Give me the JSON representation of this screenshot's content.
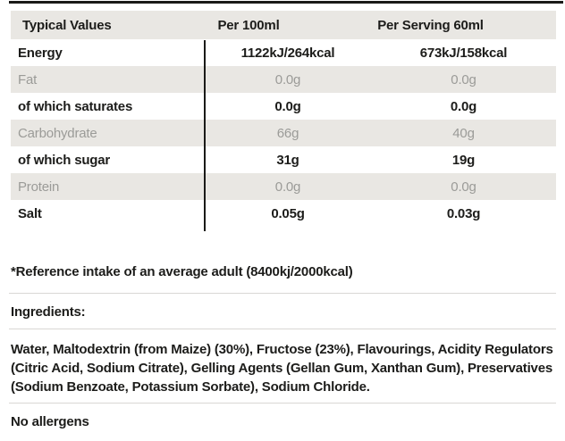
{
  "table": {
    "columns": [
      "Typical Values",
      "Per 100ml",
      "Per Serving 60ml"
    ],
    "rows": [
      {
        "label": "Energy",
        "per100": "1122kJ/264kcal",
        "serving": "673kJ/158kcal"
      },
      {
        "label": "Fat",
        "per100": "0.0g",
        "serving": "0.0g"
      },
      {
        "label": "of which saturates",
        "per100": "0.0g",
        "serving": "0.0g"
      },
      {
        "label": "Carbohydrate",
        "per100": "66g",
        "serving": "40g"
      },
      {
        "label": "of which sugar",
        "per100": "31g",
        "serving": "19g"
      },
      {
        "label": "Protein",
        "per100": "0.0g",
        "serving": "0.0g"
      },
      {
        "label": "Salt",
        "per100": "0.05g",
        "serving": "0.03g"
      }
    ]
  },
  "notes": {
    "reference": "*Reference intake of an average adult (8400kj/2000kcal)",
    "ingredients_label": "Ingredients:",
    "ingredients": "Water, Maltodextrin (from Maize) (30%), Fructose (23%), Flavourings, Acidity Regulators (Citric Acid, Sodium Citrate), Gelling Agents (Gellan Gum, Xanthan Gum), Preservatives (Sodium Benzoate, Potassium Sorbate), Sodium Chloride.",
    "allergens": "No allergens"
  },
  "colors": {
    "text_dark": "#1c1c1a",
    "text_muted": "#9b9b98",
    "stripe_bg": "#e9e7e3",
    "rule_dark": "#1a1a18",
    "divider": "#d9d7d4"
  }
}
